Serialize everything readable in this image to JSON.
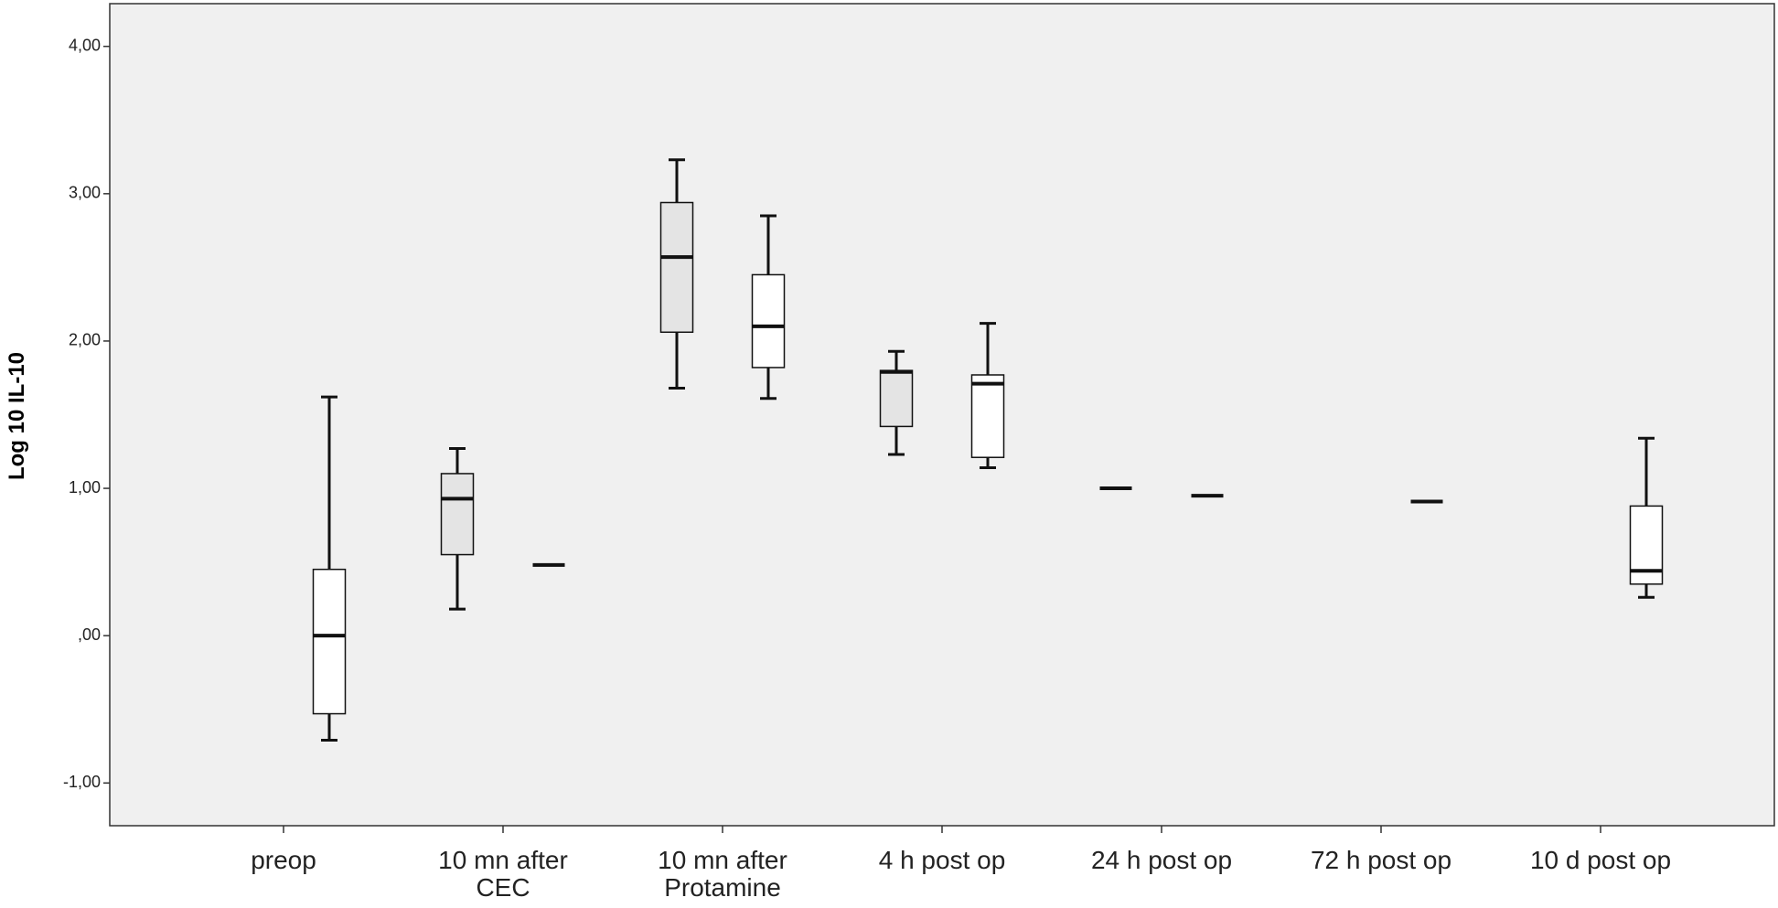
{
  "chart_data": {
    "type": "boxplot",
    "y_label": "Log 10 IL-10",
    "categories": [
      "preop",
      "10 mn after\nCEC",
      "10 mn after\nProtamine",
      "4 h post op",
      "24 h post op",
      "72 h post op",
      "10 d post op"
    ],
    "series": [
      {
        "color": "#e4e4e4",
        "boxes": [
          null,
          {
            "min": 0.18,
            "q1": 0.55,
            "median": 0.93,
            "q3": 1.1,
            "max": 1.27
          },
          {
            "min": 1.68,
            "q1": 2.06,
            "median": 2.57,
            "q3": 2.94,
            "max": 3.23
          },
          {
            "min": 1.23,
            "q1": 1.42,
            "median": 1.79,
            "q3": 1.8,
            "max": 1.93
          },
          {
            "min": 1.0,
            "q1": 1.0,
            "median": 1.0,
            "q3": 1.0,
            "max": 1.0
          },
          null,
          null
        ]
      },
      {
        "color": "#ffffff",
        "boxes": [
          {
            "min": -0.71,
            "q1": -0.53,
            "median": 0.0,
            "q3": 0.45,
            "max": 1.62
          },
          {
            "min": 0.48,
            "q1": 0.48,
            "median": 0.48,
            "q3": 0.48,
            "max": 0.48
          },
          {
            "min": 1.61,
            "q1": 1.82,
            "median": 2.1,
            "q3": 2.45,
            "max": 2.85
          },
          {
            "min": 1.14,
            "q1": 1.21,
            "median": 1.71,
            "q3": 1.77,
            "max": 2.12
          },
          {
            "min": 0.95,
            "q1": 0.95,
            "median": 0.95,
            "q3": 0.95,
            "max": 0.95
          },
          {
            "min": 0.91,
            "q1": 0.91,
            "median": 0.91,
            "q3": 0.91,
            "max": 0.91
          },
          {
            "min": 0.26,
            "q1": 0.35,
            "median": 0.44,
            "q3": 0.88,
            "max": 1.34
          }
        ]
      }
    ],
    "ylim": [
      -1.29,
      4.29
    ],
    "yticks": [
      {
        "value": -1,
        "label": "-1,00"
      },
      {
        "value": 0,
        "label": ",00"
      },
      {
        "value": 1,
        "label": "1,00"
      },
      {
        "value": 2,
        "label": "2,00"
      },
      {
        "value": 3,
        "label": "3,00"
      },
      {
        "value": 4,
        "label": "4,00"
      }
    ],
    "background": "#f0f0f0"
  }
}
